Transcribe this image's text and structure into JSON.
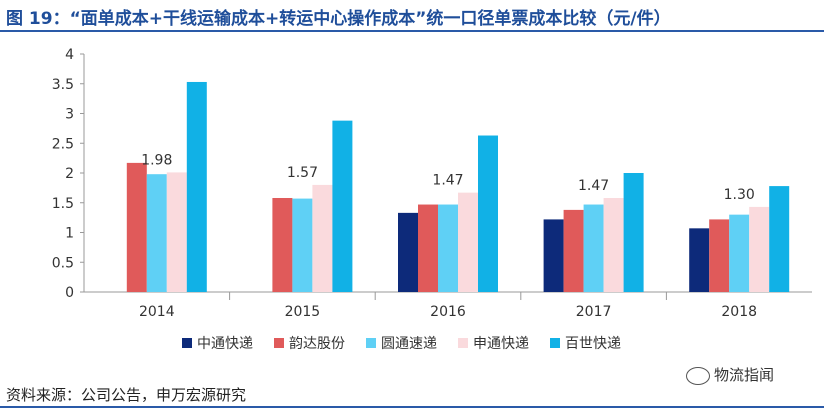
{
  "title": "图 19：“面单成本+干线运输成本+转运中心操作成本”统一口径单票成本比较（元/件）",
  "source": "资料来源：公司公告，申万宏源研究",
  "watermark": "物流指闻",
  "chart_data": {
    "type": "bar",
    "categories": [
      "2014",
      "2015",
      "2016",
      "2017",
      "2018"
    ],
    "ylim": [
      0,
      4
    ],
    "yticks": [
      "0",
      "0.5",
      "1",
      "1.5",
      "2",
      "2.5",
      "3",
      "3.5",
      "4"
    ],
    "grid": false,
    "legend_position": "bottom",
    "series": [
      {
        "name": "中通快递",
        "color": "#0d2a7a",
        "values": [
          null,
          null,
          1.33,
          1.22,
          1.07
        ]
      },
      {
        "name": "韵达股份",
        "color": "#e05a5a",
        "values": [
          2.17,
          1.58,
          1.47,
          1.38,
          1.22
        ]
      },
      {
        "name": "圆通速递",
        "color": "#5fd0f5",
        "values": [
          1.98,
          1.57,
          1.47,
          1.47,
          1.3
        ]
      },
      {
        "name": "申通快递",
        "color": "#fadadd",
        "values": [
          2.01,
          1.8,
          1.67,
          1.58,
          1.43
        ]
      },
      {
        "name": "百世快递",
        "color": "#11b1e6",
        "values": [
          3.53,
          2.88,
          2.63,
          2.0,
          1.78
        ]
      }
    ],
    "annotations": [
      {
        "category": "2014",
        "series": "圆通速递",
        "text": "1.98"
      },
      {
        "category": "2015",
        "series": "圆通速递",
        "text": "1.57"
      },
      {
        "category": "2016",
        "series": "圆通速递",
        "text": "1.47"
      },
      {
        "category": "2017",
        "series": "圆通速递",
        "text": "1.47"
      },
      {
        "category": "2018",
        "series": "圆通速递",
        "text": "1.30"
      }
    ]
  }
}
